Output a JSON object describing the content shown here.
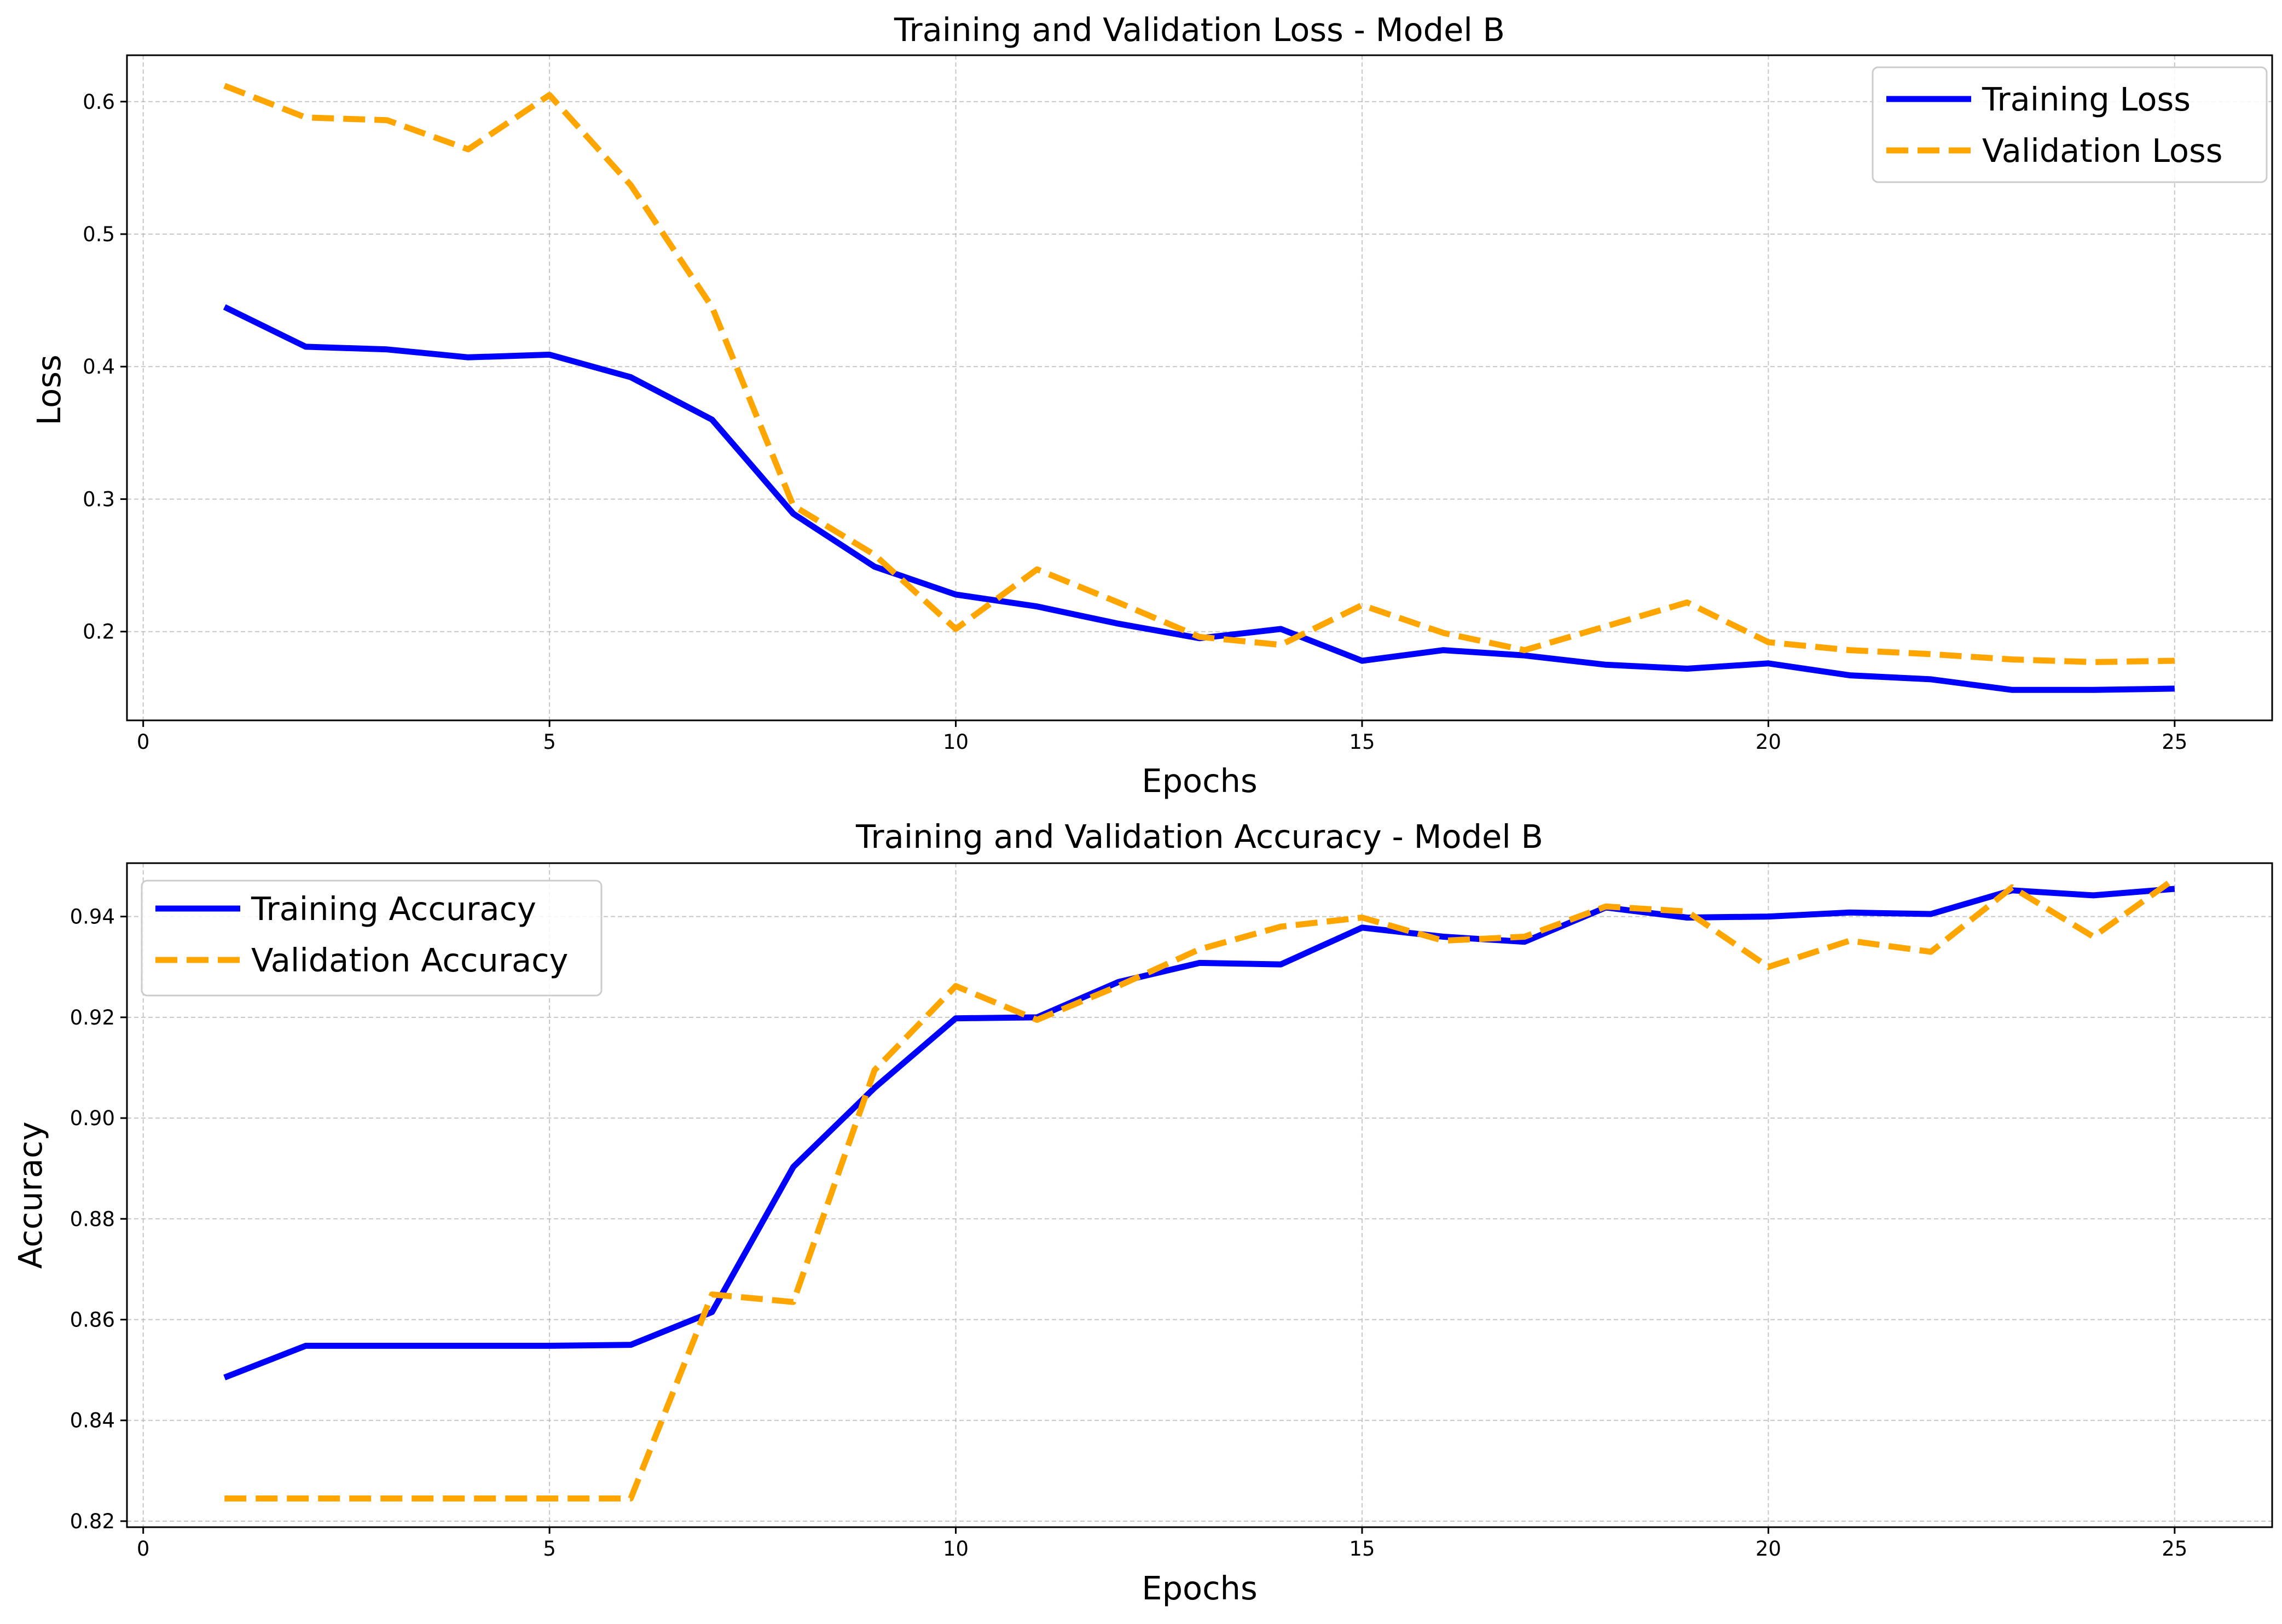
{
  "chart_data": [
    {
      "type": "line",
      "title": "Training and Validation Loss - Model B",
      "xlabel": "Epochs",
      "ylabel": "Loss",
      "xlim": [
        -0.2,
        26.2
      ],
      "ylim": [
        0.133,
        0.635
      ],
      "xticks": [
        0,
        5,
        10,
        15,
        20,
        25
      ],
      "yticks": [
        0.2,
        0.3,
        0.4,
        0.5,
        0.6
      ],
      "ytick_labels": [
        "0.2",
        "0.3",
        "0.4",
        "0.5",
        "0.6"
      ],
      "grid": true,
      "legend_position": "top-right",
      "x": [
        1,
        2,
        3,
        4,
        5,
        6,
        7,
        8,
        9,
        10,
        11,
        12,
        13,
        14,
        15,
        16,
        17,
        18,
        19,
        20,
        21,
        22,
        23,
        24,
        25
      ],
      "series": [
        {
          "name": "Training Loss",
          "color": "#0000ff",
          "style": "solid",
          "values": [
            0.445,
            0.415,
            0.413,
            0.407,
            0.409,
            0.392,
            0.36,
            0.289,
            0.249,
            0.228,
            0.219,
            0.206,
            0.195,
            0.202,
            0.178,
            0.186,
            0.182,
            0.175,
            0.172,
            0.176,
            0.167,
            0.164,
            0.156,
            0.156,
            0.157
          ]
        },
        {
          "name": "Validation Loss",
          "color": "#ffa500",
          "style": "dashed",
          "values": [
            0.612,
            0.588,
            0.586,
            0.564,
            0.605,
            0.537,
            0.445,
            0.295,
            0.258,
            0.202,
            0.247,
            0.222,
            0.196,
            0.19,
            0.22,
            0.199,
            0.186,
            0.204,
            0.222,
            0.192,
            0.186,
            0.183,
            0.179,
            0.177,
            0.178
          ]
        }
      ]
    },
    {
      "type": "line",
      "title": "Training and Validation Accuracy - Model B",
      "xlabel": "Epochs",
      "ylabel": "Accuracy",
      "xlim": [
        -0.2,
        26.2
      ],
      "ylim": [
        0.8188,
        0.9506
      ],
      "xticks": [
        0,
        5,
        10,
        15,
        20,
        25
      ],
      "yticks": [
        0.82,
        0.84,
        0.86,
        0.88,
        0.9,
        0.92,
        0.94
      ],
      "ytick_labels": [
        "0.82",
        "0.84",
        "0.86",
        "0.88",
        "0.90",
        "0.92",
        "0.94"
      ],
      "grid": true,
      "legend_position": "top-left",
      "x": [
        1,
        2,
        3,
        4,
        5,
        6,
        7,
        8,
        9,
        10,
        11,
        12,
        13,
        14,
        15,
        16,
        17,
        18,
        19,
        20,
        21,
        22,
        23,
        24,
        25
      ],
      "series": [
        {
          "name": "Training Accuracy",
          "color": "#0000ff",
          "style": "solid",
          "values": [
            0.8485,
            0.8548,
            0.8548,
            0.8548,
            0.8548,
            0.855,
            0.8615,
            0.8903,
            0.906,
            0.9198,
            0.92,
            0.927,
            0.9308,
            0.9305,
            0.9378,
            0.936,
            0.935,
            0.9418,
            0.9398,
            0.94,
            0.9408,
            0.9405,
            0.9452,
            0.9442,
            0.9455
          ]
        },
        {
          "name": "Validation Accuracy",
          "color": "#ffa500",
          "style": "dashed",
          "values": [
            0.8245,
            0.8245,
            0.8245,
            0.8245,
            0.8245,
            0.8245,
            0.865,
            0.8635,
            0.9095,
            0.9262,
            0.9195,
            0.9262,
            0.9335,
            0.938,
            0.9398,
            0.9352,
            0.936,
            0.942,
            0.941,
            0.93,
            0.9352,
            0.933,
            0.9458,
            0.936,
            0.9475
          ]
        }
      ]
    }
  ]
}
